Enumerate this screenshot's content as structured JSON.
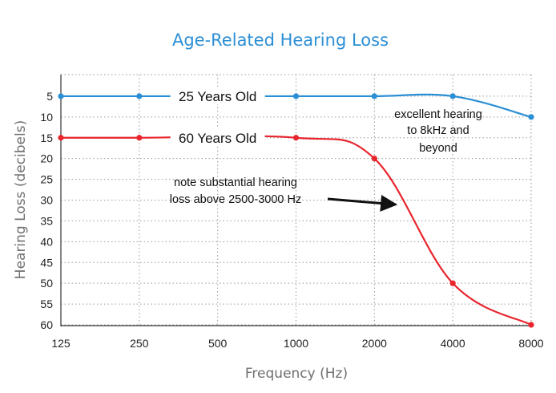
{
  "chart_data": {
    "type": "line",
    "title": "Age-Related Hearing Loss",
    "xlabel": "Frequency (Hz)",
    "ylabel": "Hearing Loss (decibels)",
    "x_scale": "log2",
    "x": [
      125,
      250,
      500,
      1000,
      2000,
      4000,
      8000
    ],
    "x_ticks": [
      "125",
      "250",
      "500",
      "1000",
      "2000",
      "4000",
      "8000"
    ],
    "y_ticks": [
      5,
      10,
      15,
      20,
      25,
      30,
      35,
      40,
      45,
      50,
      55,
      60
    ],
    "ylim": [
      60,
      0
    ],
    "y_reversed": true,
    "grid": true,
    "series": [
      {
        "name": "25 Years Old",
        "color": "#2b8fd6",
        "x": [
          125,
          250,
          1000,
          2000,
          4000,
          8000
        ],
        "values": [
          5,
          5,
          5,
          5,
          5,
          10
        ]
      },
      {
        "name": "60 Years Old",
        "color": "#e8242d",
        "x": [
          125,
          250,
          1000,
          2000,
          4000,
          8000
        ],
        "values": [
          15,
          15,
          15,
          20,
          50,
          60
        ]
      }
    ],
    "annotations": [
      {
        "lines": [
          "excellent hearing",
          "to 8kHz and",
          "beyond"
        ]
      },
      {
        "lines": [
          "note substantial hearing",
          "loss above 2500-3000 Hz"
        ],
        "arrow": true
      }
    ]
  }
}
